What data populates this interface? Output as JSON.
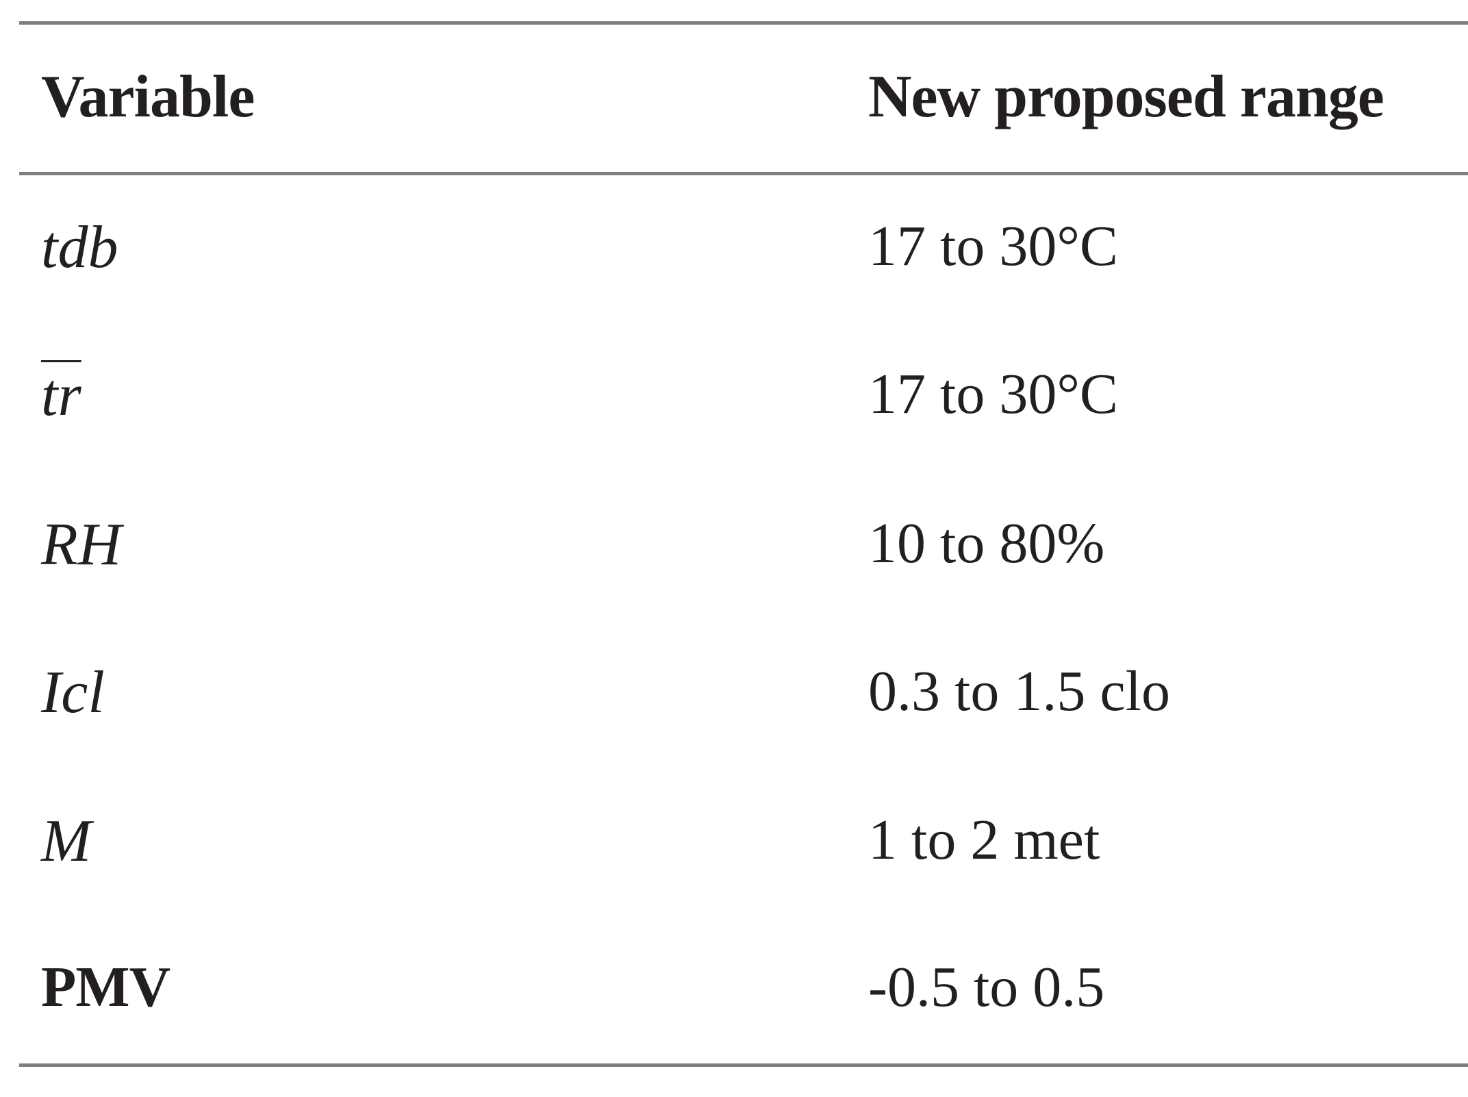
{
  "table": {
    "headers": {
      "variable": "Variable",
      "range": "New proposed range"
    },
    "rows": [
      {
        "variable": "tdb",
        "range": "17 to 30°C"
      },
      {
        "variable": "tr",
        "range": "17 to 30°C"
      },
      {
        "variable": "RH",
        "range": "10 to 80%"
      },
      {
        "variable": "Icl",
        "range": "0.3 to 1.5 clo"
      },
      {
        "variable": "M",
        "range": "1 to 2 met"
      },
      {
        "variable": "PMV",
        "range": "-0.5 to 0.5"
      }
    ]
  }
}
